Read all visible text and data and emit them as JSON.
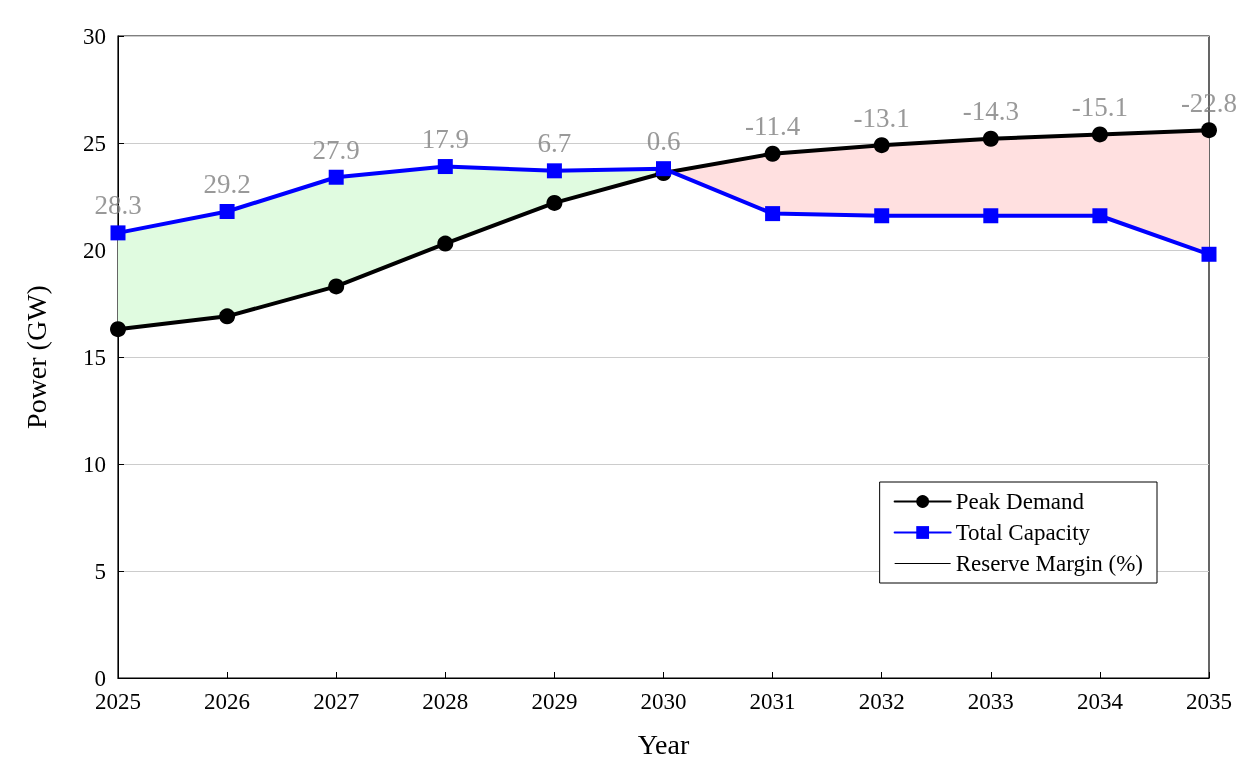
{
  "chart_data": {
    "type": "line",
    "xlabel": "Year",
    "ylabel": "Power (GW)",
    "categories": [
      "2025",
      "2026",
      "2027",
      "2028",
      "2029",
      "2030",
      "2031",
      "2032",
      "2033",
      "2034",
      "2035"
    ],
    "series": [
      {
        "name": "Peak Demand",
        "color": "#000000",
        "marker": "circle",
        "values": [
          16.3,
          16.9,
          18.3,
          20.3,
          22.2,
          23.6,
          24.5,
          24.9,
          25.2,
          25.4,
          25.6
        ]
      },
      {
        "name": "Total Capacity",
        "color": "#0000ff",
        "marker": "square",
        "values": [
          20.8,
          21.8,
          23.4,
          23.9,
          23.7,
          23.8,
          21.7,
          21.6,
          21.6,
          21.6,
          19.8
        ]
      },
      {
        "name": "Reserve Margin (%)",
        "color": "#000000",
        "marker": "none",
        "values": [
          null,
          null,
          null,
          null,
          null,
          null,
          null,
          null,
          null,
          null,
          null
        ]
      },
      {
        "color": "#e0fbe0",
        "marker": "none",
        "values": [
          null,
          null,
          null,
          null,
          null,
          null,
          null,
          null,
          null,
          null,
          null
        ],
        "lower": [
          16.3,
          16.9,
          18.3,
          20.3,
          22.2,
          23.6,
          null,
          null,
          null,
          null,
          null
        ],
        "upper": [
          20.8,
          21.8,
          23.4,
          23.9,
          23.7,
          23.8,
          null,
          null,
          null,
          null,
          null
        ]
      },
      {
        "color": "#ffe0e0",
        "marker": "none",
        "values": [
          null,
          null,
          null,
          null,
          null,
          null,
          null,
          null,
          null,
          null,
          null
        ],
        "lower": [
          null,
          null,
          null,
          null,
          null,
          23.7,
          21.7,
          21.6,
          21.6,
          21.6,
          19.8
        ],
        "upper": [
          null,
          null,
          null,
          null,
          null,
          23.7,
          24.5,
          24.9,
          25.2,
          25.4,
          25.6
        ]
      }
    ],
    "annotations": [
      "28.3",
      "29.2",
      "27.9",
      "17.9",
      "6.7",
      "0.6",
      "-11.4",
      "-13.1",
      "-14.3",
      "-15.1",
      "-22.8"
    ],
    "ylim": [
      0,
      30
    ],
    "yticks": [
      0,
      5,
      10,
      15,
      20,
      25,
      30
    ],
    "grid": "y",
    "legend": "bottom right"
  }
}
